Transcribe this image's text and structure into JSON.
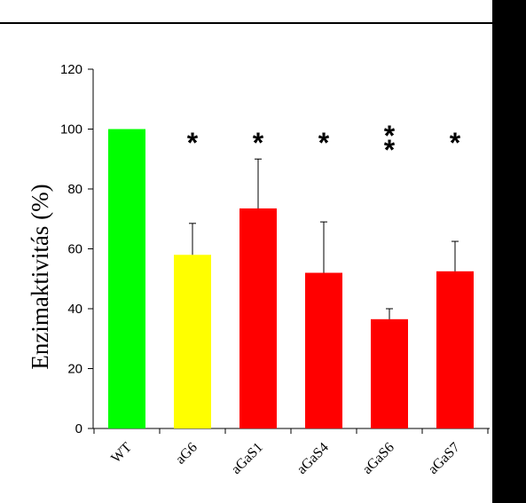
{
  "chart_data": {
    "type": "bar",
    "categories": [
      "WT",
      "aG6",
      "aGaS1",
      "aGaS4",
      "aGaS6",
      "aGaS7"
    ],
    "values": [
      100,
      58,
      73.5,
      52,
      36.5,
      52.5
    ],
    "errors": [
      0,
      10.5,
      16.5,
      17,
      3.5,
      10
    ],
    "significance": [
      "",
      "*",
      "*",
      "*",
      "**",
      "*"
    ],
    "colors": [
      "#00ff00",
      "#ffff00",
      "#ff0000",
      "#ff0000",
      "#ff0000",
      "#ff0000"
    ],
    "ylabel": "Enzimaktivitás (%)",
    "ylim": [
      0,
      120
    ],
    "yticks": [
      0,
      20,
      40,
      60,
      80,
      100,
      120
    ],
    "grid": false,
    "legend": "none"
  }
}
